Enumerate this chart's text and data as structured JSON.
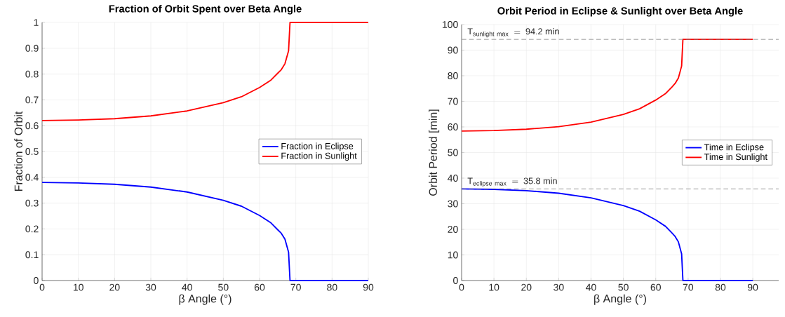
{
  "chart_data": [
    {
      "type": "line",
      "title": "Fraction of Orbit Spent over Beta Angle",
      "xlabel": "β Angle (°)",
      "ylabel": "Fraction of Orbit",
      "x": [
        0,
        10,
        20,
        30,
        40,
        50,
        55,
        60,
        63,
        65,
        66,
        67,
        68,
        68.4,
        90
      ],
      "series": [
        {
          "name": "Fraction in Eclipse",
          "color": "#0000ff",
          "values": [
            0.38,
            0.378,
            0.373,
            0.362,
            0.343,
            0.311,
            0.288,
            0.252,
            0.225,
            0.197,
            0.183,
            0.16,
            0.11,
            0,
            0
          ]
        },
        {
          "name": "Fraction in Sunlight",
          "color": "#ff0000",
          "values": [
            0.62,
            0.622,
            0.627,
            0.638,
            0.657,
            0.689,
            0.712,
            0.748,
            0.775,
            0.803,
            0.817,
            0.84,
            0.89,
            1,
            1
          ]
        }
      ],
      "xlim": [
        0,
        90
      ],
      "ylim": [
        0,
        1
      ],
      "xticks": [
        0,
        10,
        20,
        30,
        40,
        50,
        60,
        70,
        80,
        90
      ],
      "yticks": [
        0,
        0.1,
        0.2,
        0.3,
        0.4,
        0.5,
        0.6,
        0.7,
        0.8,
        0.9,
        1
      ],
      "grid": true,
      "legend": "right",
      "marker": "none",
      "line_style": "solid"
    },
    {
      "type": "line",
      "title": "Orbit Period in Eclipse & Sunlight over Beta Angle",
      "xlabel": "β Angle (°)",
      "ylabel": "Orbit Period [min]",
      "x": [
        0,
        10,
        20,
        30,
        40,
        50,
        55,
        60,
        63,
        65,
        66,
        67,
        68,
        68.4,
        90
      ],
      "series": [
        {
          "name": "Time in Eclipse",
          "color": "#0000ff",
          "values": [
            35.8,
            35.6,
            35.1,
            34.1,
            32.3,
            29.3,
            27.1,
            23.7,
            21.2,
            18.6,
            17.2,
            15.1,
            10.4,
            0,
            0
          ]
        },
        {
          "name": "Time in Sunlight",
          "color": "#ff0000",
          "values": [
            58.4,
            58.6,
            59.1,
            60.1,
            61.9,
            64.9,
            67.1,
            70.5,
            73.0,
            75.6,
            77.0,
            79.1,
            83.8,
            94.2,
            94.2
          ]
        }
      ],
      "ref_lines": [
        {
          "axis": "y",
          "value": 94.2,
          "label": "\\mathrm{T_{sunlight\\ max}\\ =\\ 94.2\\ min}",
          "color": "#808080",
          "line_style": "dashed"
        },
        {
          "axis": "y",
          "value": 35.8,
          "label": "\\mathrm{T_{eclipse\\ max}\\ =\\ 35.8\\ min}",
          "color": "#808080",
          "line_style": "dashed"
        }
      ],
      "xlim": [
        0,
        98
      ],
      "ylim": [
        0,
        100
      ],
      "xticks": [
        0,
        10,
        20,
        30,
        40,
        50,
        60,
        70,
        80,
        90
      ],
      "yticks": [
        0,
        10,
        20,
        30,
        40,
        50,
        60,
        70,
        80,
        90,
        100
      ],
      "grid": true,
      "legend": "right",
      "marker": "none",
      "line_style": "solid"
    }
  ]
}
